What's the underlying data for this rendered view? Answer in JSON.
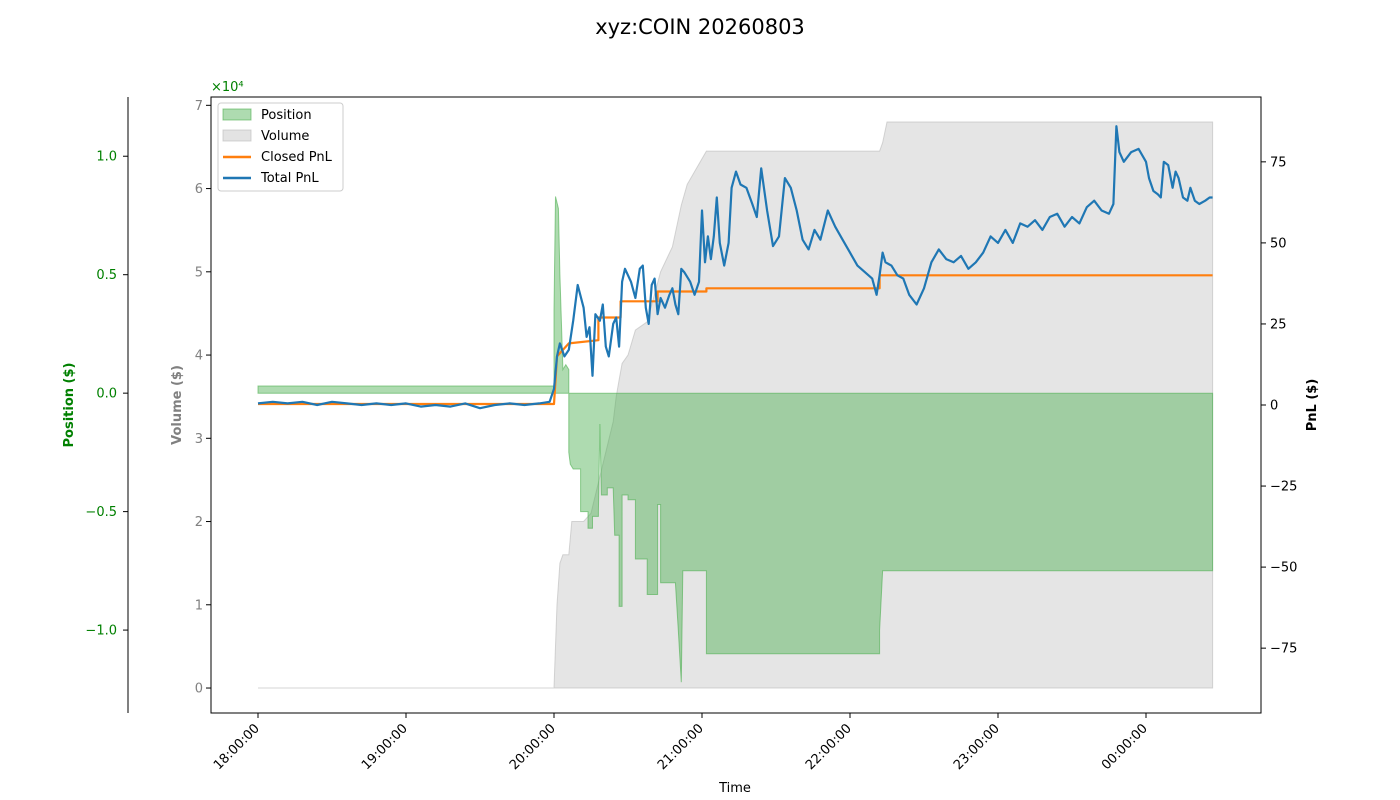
{
  "chart_data": {
    "type": "line",
    "title": "xyz:COIN 20260803",
    "xlabel": "Time",
    "x_ticks": [
      "18:00:00",
      "19:00:00",
      "20:00:00",
      "21:00:00",
      "22:00:00",
      "23:00:00",
      "00:00:00"
    ],
    "axes": {
      "position": {
        "label": "Position ($)",
        "color": "#008000",
        "ylim": [
          -1.35,
          1.25
        ],
        "scale_label": "×10⁴",
        "ticks": [
          1.0,
          0.5,
          0.0,
          -0.5,
          -1.0
        ],
        "tick_labels": [
          "1.0",
          "0.5",
          "0.0",
          "−0.5",
          "−1.0"
        ]
      },
      "volume": {
        "label": "Volume ($)",
        "color": "#808080",
        "ylim": [
          -0.3,
          7.1
        ],
        "ticks": [
          0,
          1,
          2,
          3,
          4,
          5,
          6,
          7
        ],
        "tick_labels": [
          "0",
          "1",
          "2",
          "3",
          "4",
          "5",
          "6",
          "7"
        ]
      },
      "pnl": {
        "label": "PnL ($)",
        "color": "#000000",
        "ylim": [
          -95,
          95
        ],
        "ticks": [
          75,
          50,
          25,
          0,
          -25,
          -50,
          -75
        ],
        "tick_labels": [
          "75",
          "50",
          "25",
          "0",
          "−25",
          "−50",
          "−75"
        ]
      }
    },
    "legend": {
      "placement": "upper-left",
      "entries": [
        "Position",
        "Volume",
        "Closed PnL",
        "Total PnL"
      ]
    },
    "series": [
      {
        "name": "Position",
        "style": "area",
        "axis": "position",
        "color": "#4caf50",
        "points": [
          [
            0.0,
            0.03
          ],
          [
            2.0,
            0.03
          ],
          [
            2.0,
            0.35
          ],
          [
            2.01,
            0.83
          ],
          [
            2.03,
            0.78
          ],
          [
            2.04,
            0.5
          ],
          [
            2.06,
            0.1
          ],
          [
            2.08,
            0.12
          ],
          [
            2.1,
            0.1
          ],
          [
            2.1,
            0.02
          ],
          [
            2.1,
            0.0
          ],
          [
            2.1,
            -0.25
          ],
          [
            2.11,
            -0.3
          ],
          [
            2.13,
            -0.32
          ],
          [
            2.18,
            -0.32
          ],
          [
            2.18,
            -0.5
          ],
          [
            2.23,
            -0.5
          ],
          [
            2.23,
            -0.57
          ],
          [
            2.26,
            -0.57
          ],
          [
            2.26,
            -0.52
          ],
          [
            2.3,
            -0.52
          ],
          [
            2.3,
            -0.5
          ],
          [
            2.31,
            -0.13
          ],
          [
            2.32,
            -0.43
          ],
          [
            2.36,
            -0.43
          ],
          [
            2.36,
            -0.4
          ],
          [
            2.4,
            -0.4
          ],
          [
            2.41,
            -0.6
          ],
          [
            2.44,
            -0.6
          ],
          [
            2.44,
            -0.9
          ],
          [
            2.46,
            -0.9
          ],
          [
            2.46,
            -0.43
          ],
          [
            2.5,
            -0.43
          ],
          [
            2.5,
            -0.45
          ],
          [
            2.55,
            -0.45
          ],
          [
            2.55,
            -0.7
          ],
          [
            2.63,
            -0.7
          ],
          [
            2.63,
            -0.85
          ],
          [
            2.7,
            -0.85
          ],
          [
            2.7,
            -0.47
          ],
          [
            2.72,
            -0.47
          ],
          [
            2.72,
            -0.8
          ],
          [
            2.82,
            -0.8
          ],
          [
            2.84,
            -1.0
          ],
          [
            2.86,
            -1.22
          ],
          [
            2.87,
            -0.75
          ],
          [
            3.03,
            -0.75
          ],
          [
            3.03,
            -1.1
          ],
          [
            4.2,
            -1.1
          ],
          [
            4.2,
            -1.0
          ],
          [
            4.22,
            -0.75
          ],
          [
            6.45,
            -0.75
          ],
          [
            6.45,
            0.0
          ],
          [
            0.0,
            0.0
          ]
        ]
      },
      {
        "name": "Volume",
        "style": "area",
        "axis": "volume",
        "color": "#cccccc",
        "points": [
          [
            0.0,
            0.0
          ],
          [
            2.0,
            0.0
          ],
          [
            2.02,
            1.0
          ],
          [
            2.04,
            1.5
          ],
          [
            2.06,
            1.6
          ],
          [
            2.1,
            1.6
          ],
          [
            2.12,
            2.0
          ],
          [
            2.2,
            2.0
          ],
          [
            2.25,
            2.1
          ],
          [
            2.4,
            3.2
          ],
          [
            2.42,
            3.5
          ],
          [
            2.44,
            3.7
          ],
          [
            2.46,
            3.9
          ],
          [
            2.5,
            4.0
          ],
          [
            2.55,
            4.3
          ],
          [
            2.63,
            4.4
          ],
          [
            2.72,
            5.0
          ],
          [
            2.8,
            5.3
          ],
          [
            2.86,
            5.8
          ],
          [
            2.9,
            6.05
          ],
          [
            3.03,
            6.45
          ],
          [
            4.2,
            6.45
          ],
          [
            4.22,
            6.55
          ],
          [
            4.25,
            6.8
          ],
          [
            6.45,
            6.8
          ],
          [
            6.45,
            0.0
          ]
        ]
      },
      {
        "name": "Closed PnL",
        "style": "step-line",
        "axis": "pnl",
        "color": "#ff7f0e",
        "points": [
          [
            0.0,
            0.3
          ],
          [
            2.0,
            0.3
          ],
          [
            2.02,
            15.0
          ],
          [
            2.1,
            19.0
          ],
          [
            2.3,
            20.0
          ],
          [
            2.3,
            27.0
          ],
          [
            2.45,
            27.0
          ],
          [
            2.45,
            32.0
          ],
          [
            2.7,
            32.0
          ],
          [
            2.7,
            35.0
          ],
          [
            3.03,
            35.0
          ],
          [
            3.03,
            36.0
          ],
          [
            4.2,
            36.0
          ],
          [
            4.2,
            40.0
          ],
          [
            6.45,
            40.0
          ]
        ]
      },
      {
        "name": "Total PnL",
        "style": "line",
        "axis": "pnl",
        "color": "#1f77b4",
        "points": [
          [
            0.0,
            0.5
          ],
          [
            0.1,
            1.0
          ],
          [
            0.2,
            0.5
          ],
          [
            0.3,
            1.0
          ],
          [
            0.4,
            0.0
          ],
          [
            0.5,
            1.0
          ],
          [
            0.6,
            0.5
          ],
          [
            0.7,
            0.0
          ],
          [
            0.8,
            0.5
          ],
          [
            0.9,
            0.0
          ],
          [
            1.0,
            0.5
          ],
          [
            1.1,
            -0.5
          ],
          [
            1.2,
            0.0
          ],
          [
            1.3,
            -0.5
          ],
          [
            1.4,
            0.5
          ],
          [
            1.5,
            -1.0
          ],
          [
            1.6,
            0.0
          ],
          [
            1.7,
            0.5
          ],
          [
            1.8,
            0.0
          ],
          [
            1.9,
            0.5
          ],
          [
            1.97,
            1.0
          ],
          [
            2.0,
            5.0
          ],
          [
            2.02,
            15.0
          ],
          [
            2.04,
            19.0
          ],
          [
            2.07,
            15.0
          ],
          [
            2.1,
            17.0
          ],
          [
            2.13,
            26.0
          ],
          [
            2.16,
            37.0
          ],
          [
            2.2,
            30.0
          ],
          [
            2.22,
            21.0
          ],
          [
            2.24,
            24.0
          ],
          [
            2.26,
            9.0
          ],
          [
            2.28,
            28.0
          ],
          [
            2.31,
            26.0
          ],
          [
            2.33,
            31.0
          ],
          [
            2.35,
            18.0
          ],
          [
            2.37,
            15.0
          ],
          [
            2.4,
            25.0
          ],
          [
            2.42,
            27.0
          ],
          [
            2.44,
            18.0
          ],
          [
            2.46,
            38.0
          ],
          [
            2.48,
            42.0
          ],
          [
            2.5,
            40.0
          ],
          [
            2.52,
            38.0
          ],
          [
            2.55,
            33.0
          ],
          [
            2.58,
            42.0
          ],
          [
            2.6,
            43.0
          ],
          [
            2.62,
            30.0
          ],
          [
            2.64,
            25.0
          ],
          [
            2.66,
            37.0
          ],
          [
            2.68,
            39.0
          ],
          [
            2.7,
            28.0
          ],
          [
            2.72,
            33.0
          ],
          [
            2.75,
            30.0
          ],
          [
            2.78,
            34.0
          ],
          [
            2.8,
            36.0
          ],
          [
            2.82,
            31.0
          ],
          [
            2.84,
            28.0
          ],
          [
            2.86,
            42.0
          ],
          [
            2.88,
            41.0
          ],
          [
            2.92,
            38.0
          ],
          [
            2.95,
            34.0
          ],
          [
            2.98,
            38.0
          ],
          [
            3.0,
            60.0
          ],
          [
            3.02,
            44.0
          ],
          [
            3.04,
            52.0
          ],
          [
            3.06,
            45.0
          ],
          [
            3.08,
            52.0
          ],
          [
            3.1,
            64.0
          ],
          [
            3.12,
            50.0
          ],
          [
            3.15,
            43.0
          ],
          [
            3.18,
            50.0
          ],
          [
            3.2,
            67.0
          ],
          [
            3.23,
            72.0
          ],
          [
            3.26,
            68.0
          ],
          [
            3.3,
            67.0
          ],
          [
            3.34,
            62.0
          ],
          [
            3.37,
            58.0
          ],
          [
            3.4,
            73.0
          ],
          [
            3.44,
            60.0
          ],
          [
            3.48,
            49.0
          ],
          [
            3.52,
            52.0
          ],
          [
            3.56,
            70.0
          ],
          [
            3.6,
            67.0
          ],
          [
            3.64,
            60.0
          ],
          [
            3.68,
            51.0
          ],
          [
            3.72,
            48.0
          ],
          [
            3.76,
            54.0
          ],
          [
            3.8,
            51.0
          ],
          [
            3.85,
            60.0
          ],
          [
            3.9,
            55.0
          ],
          [
            3.95,
            51.0
          ],
          [
            4.0,
            47.0
          ],
          [
            4.05,
            43.0
          ],
          [
            4.1,
            41.0
          ],
          [
            4.15,
            39.0
          ],
          [
            4.18,
            34.0
          ],
          [
            4.2,
            40.0
          ],
          [
            4.22,
            47.0
          ],
          [
            4.24,
            44.0
          ],
          [
            4.28,
            43.0
          ],
          [
            4.32,
            40.0
          ],
          [
            4.36,
            39.0
          ],
          [
            4.4,
            34.0
          ],
          [
            4.45,
            31.0
          ],
          [
            4.5,
            36.0
          ],
          [
            4.55,
            44.0
          ],
          [
            4.6,
            48.0
          ],
          [
            4.65,
            45.0
          ],
          [
            4.7,
            44.0
          ],
          [
            4.75,
            46.0
          ],
          [
            4.8,
            42.0
          ],
          [
            4.85,
            44.0
          ],
          [
            4.9,
            47.0
          ],
          [
            4.95,
            52.0
          ],
          [
            5.0,
            50.0
          ],
          [
            5.05,
            54.0
          ],
          [
            5.1,
            50.0
          ],
          [
            5.15,
            56.0
          ],
          [
            5.2,
            55.0
          ],
          [
            5.25,
            57.0
          ],
          [
            5.3,
            54.0
          ],
          [
            5.35,
            58.0
          ],
          [
            5.4,
            59.0
          ],
          [
            5.45,
            55.0
          ],
          [
            5.5,
            58.0
          ],
          [
            5.55,
            56.0
          ],
          [
            5.6,
            61.0
          ],
          [
            5.65,
            63.0
          ],
          [
            5.7,
            60.0
          ],
          [
            5.75,
            59.0
          ],
          [
            5.78,
            62.0
          ],
          [
            5.8,
            86.0
          ],
          [
            5.82,
            78.0
          ],
          [
            5.85,
            75.0
          ],
          [
            5.9,
            78.0
          ],
          [
            5.95,
            79.0
          ],
          [
            6.0,
            75.0
          ],
          [
            6.02,
            70.0
          ],
          [
            6.05,
            66.0
          ],
          [
            6.08,
            65.0
          ],
          [
            6.1,
            64.0
          ],
          [
            6.12,
            75.0
          ],
          [
            6.15,
            74.0
          ],
          [
            6.18,
            67.0
          ],
          [
            6.2,
            72.0
          ],
          [
            6.22,
            70.0
          ],
          [
            6.25,
            64.0
          ],
          [
            6.28,
            63.0
          ],
          [
            6.3,
            67.0
          ],
          [
            6.33,
            63.0
          ],
          [
            6.36,
            62.0
          ],
          [
            6.4,
            63.0
          ],
          [
            6.43,
            64.0
          ],
          [
            6.45,
            64.0
          ]
        ]
      }
    ]
  }
}
